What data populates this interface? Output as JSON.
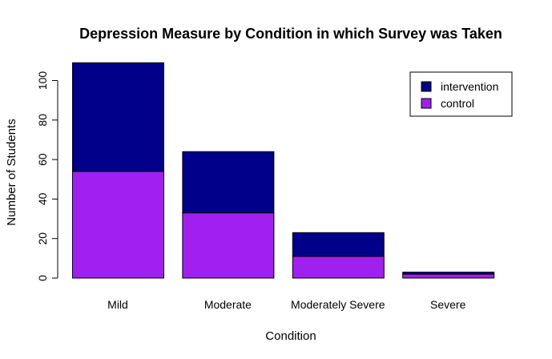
{
  "chart_data": {
    "type": "bar",
    "stacked": true,
    "title": "Depression Measure by Condition in which Survey was Taken",
    "xlabel": "Condition",
    "ylabel": "Number of Students",
    "categories": [
      "Mild",
      "Moderate",
      "Moderately Severe",
      "Severe"
    ],
    "series": [
      {
        "name": "control",
        "color": "#A020F0",
        "values": [
          54,
          33,
          11,
          2
        ]
      },
      {
        "name": "intervention",
        "color": "#00008B",
        "values": [
          55,
          31,
          12,
          1
        ]
      }
    ],
    "ylim": [
      0,
      110
    ],
    "yticks": [
      0,
      20,
      40,
      60,
      80,
      100
    ],
    "legend": {
      "position": "top-right",
      "entries": [
        "intervention",
        "control"
      ]
    },
    "grid": false
  }
}
